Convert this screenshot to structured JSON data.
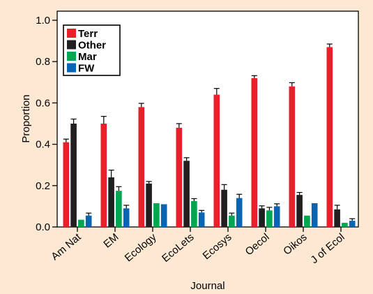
{
  "chart_data": {
    "type": "bar",
    "xlabel": "Journal",
    "ylabel": "Proportion",
    "ylim": [
      0,
      1.0
    ],
    "yticks": [
      "0.0",
      "0.2",
      "0.4",
      "0.6",
      "0.8",
      "1.0"
    ],
    "grid": false,
    "legend_position": "top-left",
    "categories": [
      "Am Nat",
      "EM",
      "Ecology",
      "EcoLets",
      "Ecosys",
      "Oecol",
      "Oikos",
      "J of Ecol"
    ],
    "series": [
      {
        "name": "Terr",
        "color": "#e8202a",
        "values": [
          0.41,
          0.5,
          0.58,
          0.48,
          0.64,
          0.72,
          0.68,
          0.87
        ],
        "errors": [
          0.015,
          0.035,
          0.018,
          0.02,
          0.03,
          0.012,
          0.018,
          0.015
        ]
      },
      {
        "name": "Other",
        "color": "#231f20",
        "values": [
          0.5,
          0.24,
          0.21,
          0.32,
          0.18,
          0.09,
          0.155,
          0.085
        ],
        "errors": [
          0.022,
          0.035,
          0.01,
          0.015,
          0.025,
          0.012,
          0.012,
          0.02
        ]
      },
      {
        "name": "Mar",
        "color": "#00a651",
        "values": [
          0.035,
          0.175,
          0.115,
          0.125,
          0.055,
          0.08,
          0.055,
          0.02
        ],
        "errors": [
          0.0,
          0.02,
          0.0,
          0.012,
          0.012,
          0.015,
          0.0,
          0.0
        ]
      },
      {
        "name": "FW",
        "color": "#0a64b4",
        "values": [
          0.055,
          0.09,
          0.11,
          0.07,
          0.14,
          0.1,
          0.115,
          0.03
        ],
        "errors": [
          0.012,
          0.015,
          0.0,
          0.01,
          0.018,
          0.012,
          0.0,
          0.01
        ]
      }
    ]
  }
}
